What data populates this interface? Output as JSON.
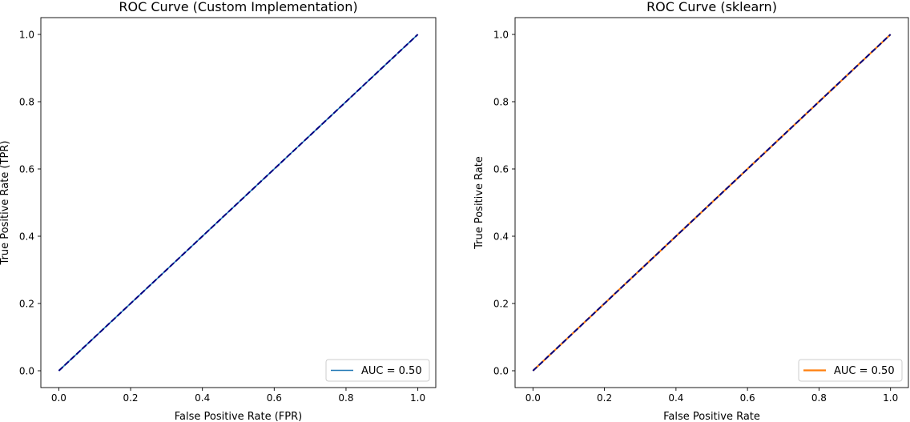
{
  "chart_data": [
    {
      "type": "line",
      "title": "ROC Curve (Custom Implementation)",
      "xlabel": "False Positive Rate (FPR)",
      "ylabel": "True Positive Rate (TPR)",
      "xlim": [
        -0.05,
        1.05
      ],
      "ylim": [
        -0.05,
        1.05
      ],
      "xticks": [
        "0.0",
        "0.2",
        "0.4",
        "0.6",
        "0.8",
        "1.0"
      ],
      "yticks": [
        "0.0",
        "0.2",
        "0.4",
        "0.6",
        "0.8",
        "1.0"
      ],
      "grid": false,
      "legend_position": "lower-right",
      "series": [
        {
          "name": "AUC = 0.50",
          "x": [
            0.0,
            1.0
          ],
          "y": [
            0.0,
            1.0
          ],
          "color": "#1f77b4",
          "style": "solid",
          "in_legend": true
        },
        {
          "x": [
            0.0,
            1.0
          ],
          "y": [
            0.0,
            1.0
          ],
          "color": "#000080",
          "style": "dashed",
          "in_legend": false
        }
      ]
    },
    {
      "type": "line",
      "title": "ROC Curve (sklearn)",
      "xlabel": "False Positive Rate",
      "ylabel": "True Positive Rate",
      "xlim": [
        -0.05,
        1.05
      ],
      "ylim": [
        -0.05,
        1.05
      ],
      "xticks": [
        "0.0",
        "0.2",
        "0.4",
        "0.6",
        "0.8",
        "1.0"
      ],
      "yticks": [
        "0.0",
        "0.2",
        "0.4",
        "0.6",
        "0.8",
        "1.0"
      ],
      "grid": false,
      "legend_position": "lower-right",
      "series": [
        {
          "name": "AUC = 0.50",
          "x": [
            0.0,
            1.0
          ],
          "y": [
            0.0,
            1.0
          ],
          "color": "#ff7f0e",
          "style": "solid",
          "in_legend": true
        },
        {
          "x": [
            0.0,
            1.0
          ],
          "y": [
            0.0,
            1.0
          ],
          "color": "#000080",
          "style": "dashed",
          "in_legend": false
        }
      ]
    }
  ]
}
